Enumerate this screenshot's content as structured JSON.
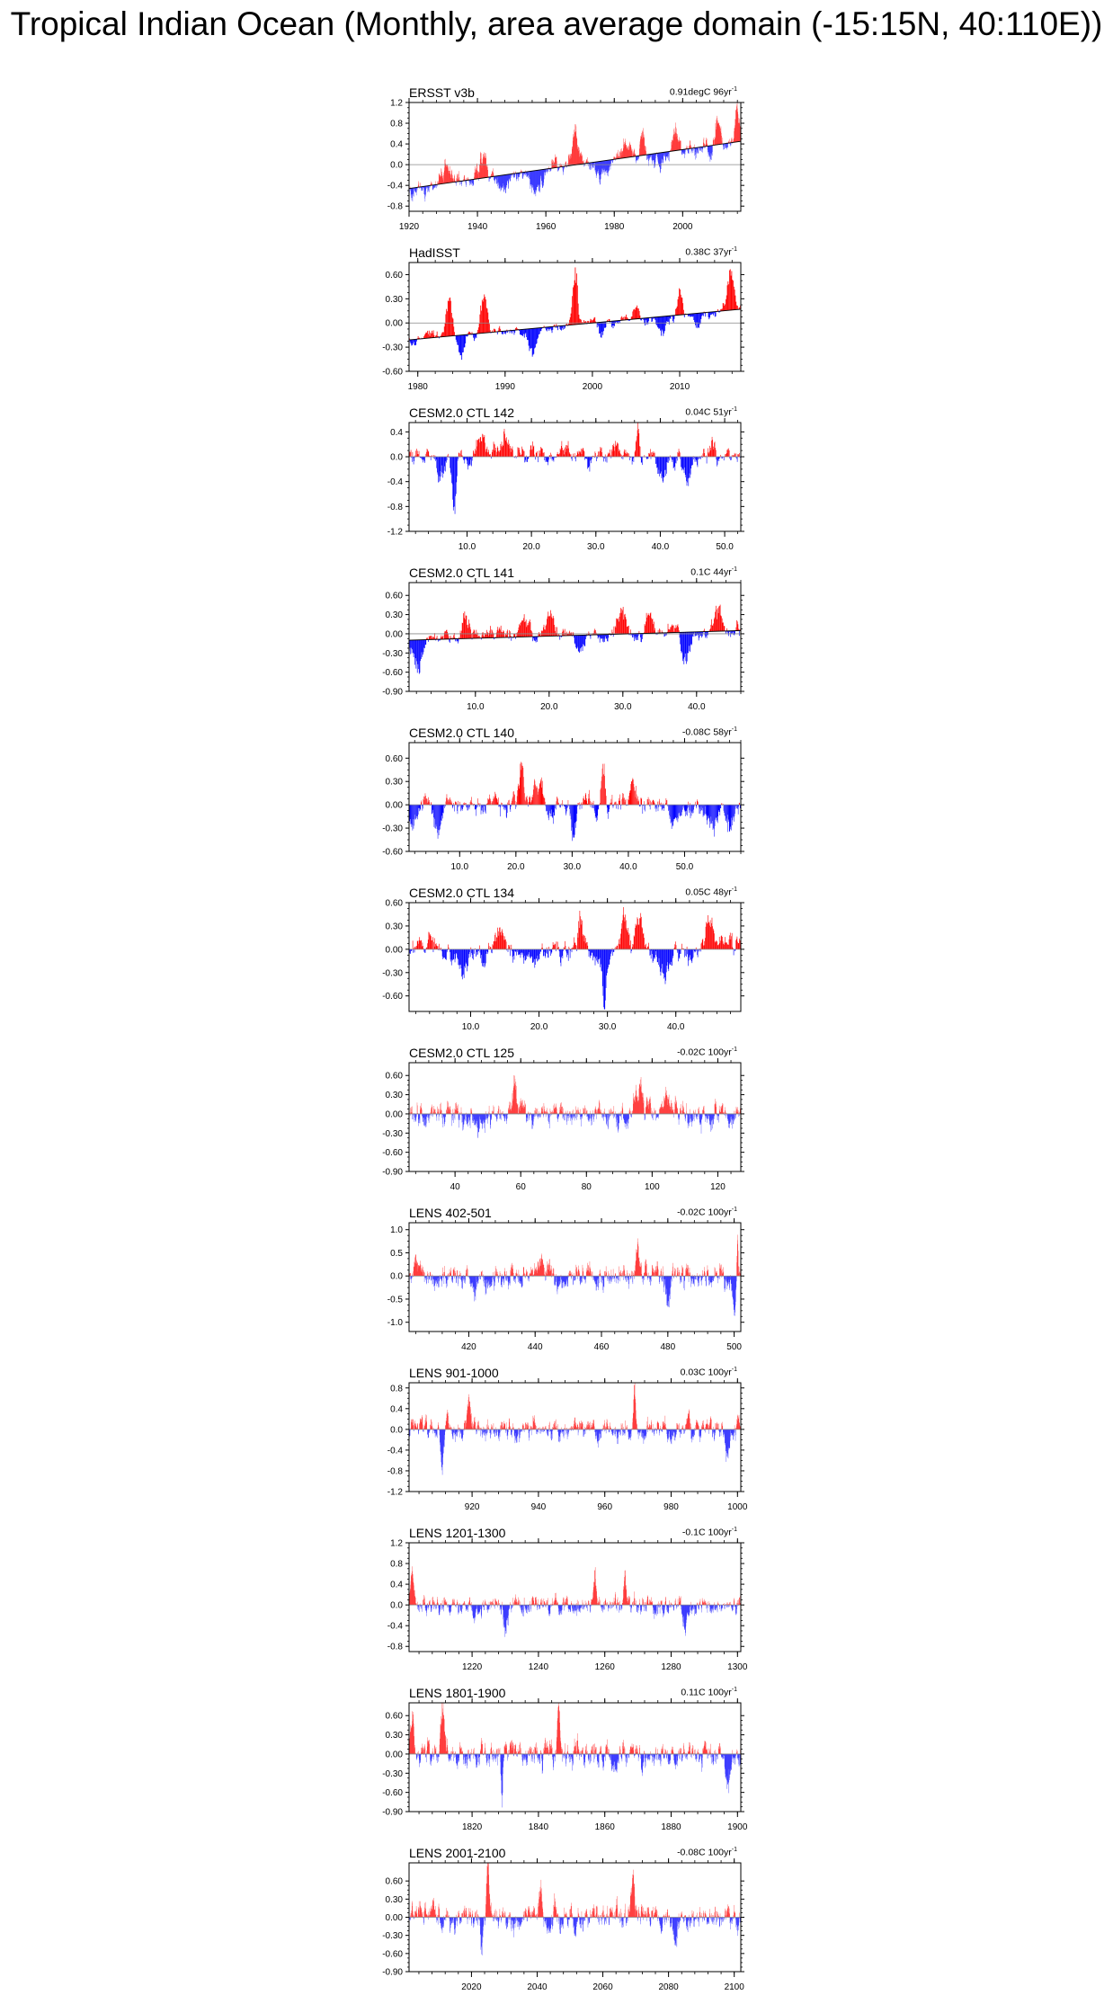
{
  "page_title": "Tropical Indian Ocean (Monthly, area average domain (-15:15N, 40:110E))",
  "colors": {
    "positive": "#ff0000",
    "negative": "#0000ff",
    "line": "#000000",
    "zero": "#888888"
  },
  "chart_data": [
    {
      "type": "bar",
      "title": "ERSST v3b",
      "trend": "0.91degC 96yr",
      "trend_exponent": "-1",
      "x_range": [
        1920,
        2017
      ],
      "xticks": [
        1920,
        1940,
        1960,
        1980,
        2000
      ],
      "ylim": [
        -0.9,
        1.2
      ],
      "yticks": [
        1.2,
        0.8,
        0.4,
        0.0,
        -0.4,
        -0.8
      ],
      "ytick_decimals": 1,
      "trend_line": [
        -0.46,
        0.45
      ],
      "amplitude": 0.17,
      "seed": 11,
      "events": [
        [
          1931,
          0.35,
          2.5
        ],
        [
          1941.5,
          0.45,
          2.0
        ],
        [
          1948,
          -0.25,
          3
        ],
        [
          1957,
          -0.35,
          3
        ],
        [
          1968.5,
          0.7,
          1.5
        ],
        [
          1976,
          -0.3,
          3
        ],
        [
          1983,
          0.35,
          1.5
        ],
        [
          1988,
          0.35,
          1.2
        ],
        [
          1993,
          -0.3,
          2
        ],
        [
          1998,
          0.55,
          1.2
        ],
        [
          2010,
          0.45,
          1.2
        ],
        [
          2015.8,
          0.6,
          0.9
        ],
        [
          2008,
          -0.25,
          1
        ]
      ]
    },
    {
      "type": "bar",
      "title": "HadISST",
      "trend": "0.38C 37yr",
      "trend_exponent": "-1",
      "x_range": [
        1979,
        2017
      ],
      "xticks": [
        1980,
        1990,
        2000,
        2010
      ],
      "ylim": [
        -0.6,
        0.75
      ],
      "yticks": [
        0.6,
        0.3,
        0.0,
        -0.3,
        -0.6
      ],
      "ytick_decimals": 2,
      "trend_line": [
        -0.21,
        0.17
      ],
      "amplitude": 0.08,
      "seed": 12,
      "events": [
        [
          1983.5,
          0.55,
          0.6
        ],
        [
          1987.5,
          0.55,
          0.7
        ],
        [
          1985,
          -0.25,
          0.7
        ],
        [
          1993,
          -0.3,
          0.9
        ],
        [
          1998,
          0.75,
          0.5
        ],
        [
          2001,
          -0.2,
          0.7
        ],
        [
          2005,
          0.15,
          0.7
        ],
        [
          2008,
          -0.25,
          0.8
        ],
        [
          2010,
          0.35,
          0.5
        ],
        [
          2012,
          -0.2,
          0.6
        ],
        [
          2015.8,
          0.5,
          0.6
        ]
      ]
    },
    {
      "type": "bar",
      "title": "CESM2.0 CTL 142",
      "trend": "0.04C 51yr",
      "trend_exponent": "-1",
      "x_range": [
        1,
        52.5
      ],
      "xticks": [
        10,
        20,
        30,
        40,
        50
      ],
      "xtick_decimals": 1,
      "ylim": [
        -1.2,
        0.55
      ],
      "yticks": [
        0.4,
        0.0,
        -0.4,
        -0.8,
        -1.2
      ],
      "ytick_decimals": 1,
      "amplitude": 0.17,
      "seed": 13,
      "events": [
        [
          8,
          -0.95,
          0.6
        ],
        [
          6,
          -0.35,
          1.0
        ],
        [
          12,
          0.3,
          1.0
        ],
        [
          16,
          0.4,
          1.2
        ],
        [
          25,
          0.3,
          1.0
        ],
        [
          33,
          0.3,
          1.0
        ],
        [
          36.5,
          0.55,
          0.4
        ],
        [
          40,
          -0.3,
          1.0
        ],
        [
          44,
          -0.35,
          1.2
        ],
        [
          48,
          0.3,
          1.0
        ]
      ]
    },
    {
      "type": "bar",
      "title": "CESM2.0 CTL 141",
      "trend": "0.1C 44yr",
      "trend_exponent": "-1",
      "x_range": [
        1,
        46
      ],
      "xticks": [
        10,
        20,
        30,
        40
      ],
      "xtick_decimals": 1,
      "ylim": [
        -0.9,
        0.8
      ],
      "yticks": [
        0.6,
        0.3,
        0.0,
        -0.3,
        -0.6,
        -0.9
      ],
      "ytick_decimals": 2,
      "trend_line": [
        -0.1,
        0.05
      ],
      "amplitude": 0.14,
      "seed": 14,
      "events": [
        [
          2,
          -0.55,
          1.2
        ],
        [
          8.5,
          0.4,
          0.8
        ],
        [
          16.5,
          0.35,
          1.0
        ],
        [
          20,
          0.35,
          1.0
        ],
        [
          24,
          -0.3,
          1.0
        ],
        [
          30,
          0.35,
          1.0
        ],
        [
          33.5,
          0.45,
          0.8
        ],
        [
          38.5,
          -0.4,
          1.0
        ],
        [
          43,
          0.35,
          1.0
        ]
      ]
    },
    {
      "type": "bar",
      "title": "CESM2.0 CTL 140",
      "trend": "-0.08C 58yr",
      "trend_exponent": "-1",
      "x_range": [
        1,
        60
      ],
      "xticks": [
        10,
        20,
        30,
        40,
        50
      ],
      "xtick_decimals": 1,
      "ylim": [
        -0.6,
        0.8
      ],
      "yticks": [
        0.6,
        0.3,
        0.0,
        -0.3,
        -0.6
      ],
      "ytick_decimals": 2,
      "amplitude": 0.16,
      "seed": 15,
      "events": [
        [
          2,
          -0.35,
          1.2
        ],
        [
          6,
          -0.3,
          1.0
        ],
        [
          21,
          0.55,
          0.6
        ],
        [
          24,
          0.35,
          1.0
        ],
        [
          30,
          -0.3,
          1.0
        ],
        [
          35.5,
          0.55,
          0.6
        ],
        [
          41,
          0.25,
          1.5
        ],
        [
          48,
          -0.25,
          1.2
        ],
        [
          55,
          -0.35,
          1.2
        ],
        [
          58,
          -0.35,
          0.8
        ]
      ]
    },
    {
      "type": "bar",
      "title": "CESM2.0 CTL 134",
      "trend": "0.05C 48yr",
      "trend_exponent": "-1",
      "x_range": [
        1,
        49.5
      ],
      "xticks": [
        10,
        20,
        30,
        40
      ],
      "xtick_decimals": 1,
      "ylim": [
        -0.8,
        0.6
      ],
      "yticks": [
        0.6,
        0.3,
        0.0,
        -0.3,
        -0.6
      ],
      "ytick_decimals": 2,
      "amplitude": 0.16,
      "seed": 16,
      "events": [
        [
          4,
          0.35,
          1.0
        ],
        [
          9,
          -0.3,
          1.0
        ],
        [
          14,
          0.3,
          1.2
        ],
        [
          19,
          -0.3,
          1.2
        ],
        [
          26,
          0.45,
          0.6
        ],
        [
          29.5,
          -0.7,
          0.5
        ],
        [
          32.5,
          0.45,
          0.8
        ],
        [
          34.5,
          0.5,
          0.8
        ],
        [
          38,
          -0.35,
          1.0
        ],
        [
          45,
          0.35,
          1.0
        ]
      ]
    },
    {
      "type": "bar",
      "title": "CESM2.0 CTL 125",
      "trend": "-0.02C 100yr",
      "trend_exponent": "-1",
      "x_range": [
        26,
        127
      ],
      "xticks": [
        40,
        60,
        80,
        100,
        120
      ],
      "ylim": [
        -0.9,
        0.8
      ],
      "yticks": [
        0.6,
        0.3,
        0.0,
        -0.3,
        -0.6,
        -0.9
      ],
      "ytick_decimals": 2,
      "amplitude": 0.2,
      "seed": 17,
      "events": [
        [
          58,
          0.55,
          1.0
        ],
        [
          96,
          0.4,
          2
        ],
        [
          104,
          0.35,
          2
        ],
        [
          118,
          -0.45,
          1.2
        ],
        [
          47,
          -0.35,
          1.5
        ]
      ]
    },
    {
      "type": "bar",
      "title": "LENS 402-501",
      "trend": "-0.02C 100yr",
      "trend_exponent": "-1",
      "x_range": [
        402,
        502
      ],
      "xticks": [
        420,
        440,
        460,
        480,
        500
      ],
      "ylim": [
        -1.2,
        1.15
      ],
      "yticks": [
        1.0,
        0.5,
        0.0,
        -0.5,
        -1.0
      ],
      "ytick_decimals": 1,
      "amplitude": 0.28,
      "seed": 18,
      "events": [
        [
          404,
          0.55,
          1.0
        ],
        [
          422,
          -0.6,
          1.0
        ],
        [
          471,
          0.7,
          0.8
        ],
        [
          480,
          -0.5,
          1.2
        ],
        [
          500,
          -0.5,
          1.0
        ],
        [
          501,
          0.9,
          0.4
        ]
      ]
    },
    {
      "type": "bar",
      "title": "LENS 901-1000",
      "trend": "0.03C 100yr",
      "trend_exponent": "-1",
      "x_range": [
        901,
        1001
      ],
      "xticks": [
        920,
        940,
        960,
        980,
        1000
      ],
      "ylim": [
        -1.2,
        0.9
      ],
      "yticks": [
        0.8,
        0.4,
        0.0,
        -0.4,
        -0.8,
        -1.2
      ],
      "ytick_decimals": 1,
      "amplitude": 0.22,
      "seed": 19,
      "events": [
        [
          911,
          -0.85,
          0.8
        ],
        [
          969,
          0.85,
          0.5
        ],
        [
          997,
          -0.5,
          1.0
        ],
        [
          919,
          0.45,
          1.2
        ],
        [
          985,
          0.4,
          1.2
        ]
      ]
    },
    {
      "type": "bar",
      "title": "LENS 1201-1300",
      "trend": "-0.1C 100yr",
      "trend_exponent": "-1",
      "x_range": [
        1201,
        1301
      ],
      "xticks": [
        1220,
        1240,
        1260,
        1280,
        1300
      ],
      "ylim": [
        -0.9,
        1.2
      ],
      "yticks": [
        1.2,
        0.8,
        0.4,
        0.0,
        -0.4,
        -0.8
      ],
      "ytick_decimals": 1,
      "amplitude": 0.2,
      "seed": 20,
      "events": [
        [
          1202,
          0.55,
          1.0
        ],
        [
          1257,
          0.75,
          0.6
        ],
        [
          1266,
          0.7,
          0.6
        ],
        [
          1284,
          -0.5,
          1.0
        ],
        [
          1230,
          -0.4,
          1.2
        ]
      ]
    },
    {
      "type": "bar",
      "title": "LENS 1801-1900",
      "trend": "0.11C 100yr",
      "trend_exponent": "-1",
      "x_range": [
        1801,
        1901
      ],
      "xticks": [
        1820,
        1840,
        1860,
        1880,
        1900
      ],
      "ylim": [
        -0.9,
        0.8
      ],
      "yticks": [
        0.6,
        0.3,
        0.0,
        -0.3,
        -0.6,
        -0.9
      ],
      "ytick_decimals": 2,
      "amplitude": 0.22,
      "seed": 21,
      "events": [
        [
          1802,
          0.6,
          1.0
        ],
        [
          1811,
          0.7,
          0.8
        ],
        [
          1829,
          -0.75,
          0.6
        ],
        [
          1846,
          0.65,
          0.8
        ],
        [
          1897,
          -0.6,
          1.0
        ]
      ]
    },
    {
      "type": "bar",
      "title": "LENS 2001-2100",
      "trend": "-0.08C 100yr",
      "trend_exponent": "-1",
      "x_range": [
        2001,
        2102
      ],
      "xticks": [
        2020,
        2040,
        2060,
        2080,
        2100
      ],
      "ylim": [
        -0.9,
        0.9
      ],
      "yticks": [
        0.6,
        0.3,
        0.0,
        -0.3,
        -0.6,
        -0.9
      ],
      "ytick_decimals": 2,
      "amplitude": 0.22,
      "seed": 22,
      "events": [
        [
          2025,
          0.8,
          0.8
        ],
        [
          2041,
          0.65,
          0.8
        ],
        [
          2023,
          -0.75,
          0.6
        ],
        [
          2069,
          0.55,
          1.0
        ],
        [
          2082,
          -0.5,
          1.0
        ]
      ]
    }
  ]
}
